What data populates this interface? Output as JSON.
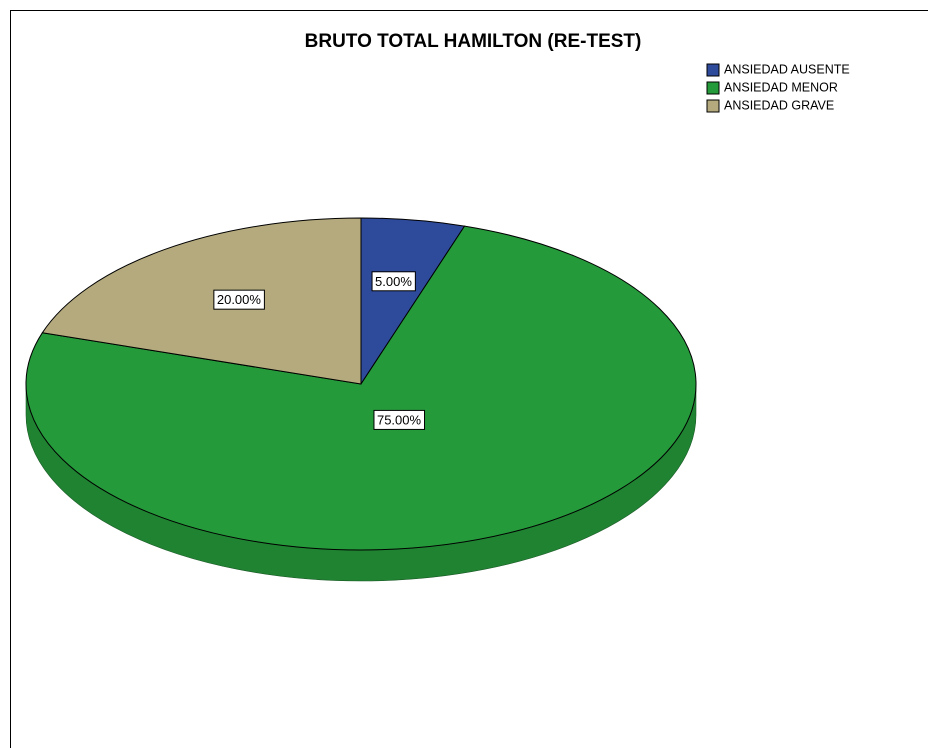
{
  "chart_data": {
    "type": "pie",
    "title": "BRUTO TOTAL HAMILTON (RE-TEST)",
    "categories": [
      "ANSIEDAD AUSENTE",
      "ANSIEDAD MENOR",
      "ANSIEDAD GRAVE"
    ],
    "values": [
      5,
      75,
      20
    ],
    "value_labels": [
      "5.00%",
      "75.00%",
      "20.00%"
    ],
    "colors": [
      "#2e4a9a",
      "#259a3b",
      "#b4aa7e"
    ],
    "legend": "upper right"
  }
}
